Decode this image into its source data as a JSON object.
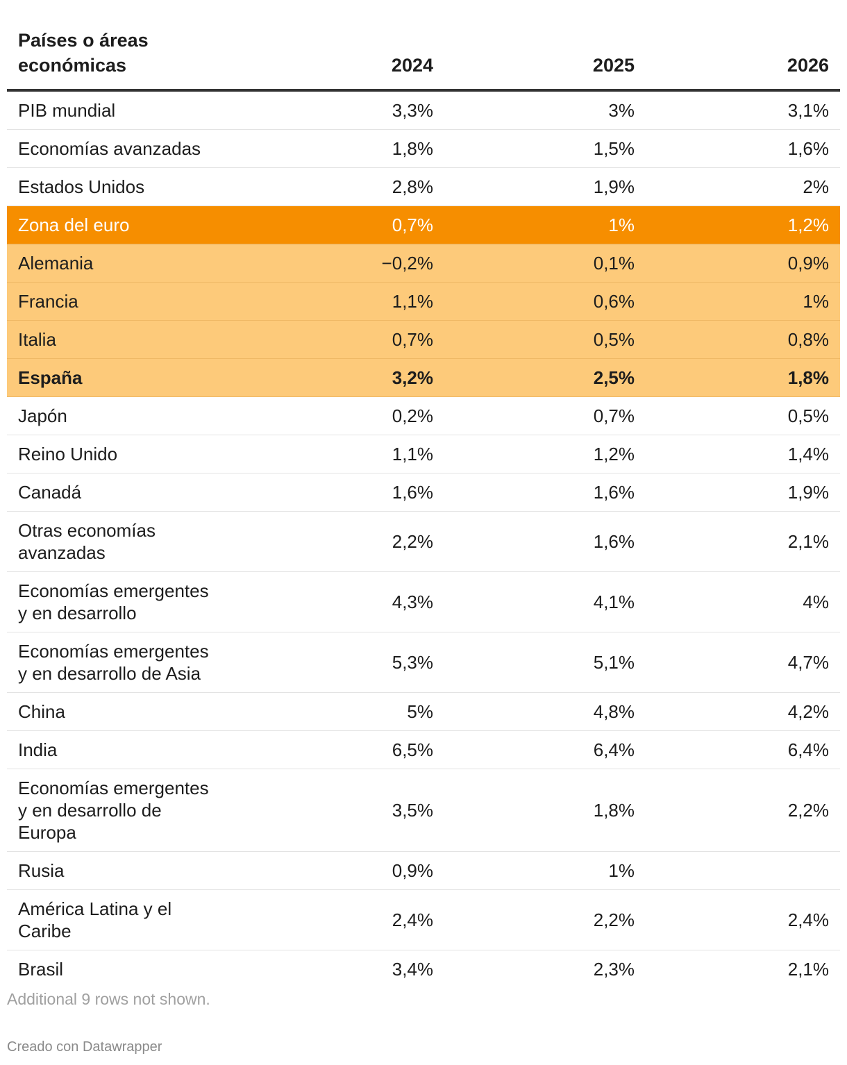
{
  "chart_data": {
    "type": "table",
    "columns": [
      "Países o áreas económicas",
      "2024",
      "2025",
      "2026"
    ],
    "rows": [
      {
        "name": "PIB mundial",
        "v2024": "3,3%",
        "v2025": "3%",
        "v2026": "3,1%",
        "highlight": "none",
        "bold": false
      },
      {
        "name": "Economías avanzadas",
        "v2024": "1,8%",
        "v2025": "1,5%",
        "v2026": "1,6%",
        "highlight": "none",
        "bold": false
      },
      {
        "name": "Estados Unidos",
        "v2024": "2,8%",
        "v2025": "1,9%",
        "v2026": "2%",
        "highlight": "none",
        "bold": false
      },
      {
        "name": "Zona del euro",
        "v2024": "0,7%",
        "v2025": "1%",
        "v2026": "1,2%",
        "highlight": "strong",
        "bold": false
      },
      {
        "name": "Alemania",
        "v2024": "−0,2%",
        "v2025": "0,1%",
        "v2026": "0,9%",
        "highlight": "soft",
        "bold": false
      },
      {
        "name": "Francia",
        "v2024": "1,1%",
        "v2025": "0,6%",
        "v2026": "1%",
        "highlight": "soft",
        "bold": false
      },
      {
        "name": "Italia",
        "v2024": "0,7%",
        "v2025": "0,5%",
        "v2026": "0,8%",
        "highlight": "soft",
        "bold": false
      },
      {
        "name": "España",
        "v2024": "3,2%",
        "v2025": "2,5%",
        "v2026": "1,8%",
        "highlight": "soft",
        "bold": true
      },
      {
        "name": "Japón",
        "v2024": "0,2%",
        "v2025": "0,7%",
        "v2026": "0,5%",
        "highlight": "none",
        "bold": false
      },
      {
        "name": "Reino Unido",
        "v2024": "1,1%",
        "v2025": "1,2%",
        "v2026": "1,4%",
        "highlight": "none",
        "bold": false
      },
      {
        "name": "Canadá",
        "v2024": "1,6%",
        "v2025": "1,6%",
        "v2026": "1,9%",
        "highlight": "none",
        "bold": false
      },
      {
        "name": "Otras economías avanzadas",
        "v2024": "2,2%",
        "v2025": "1,6%",
        "v2026": "2,1%",
        "highlight": "none",
        "bold": false
      },
      {
        "name": "Economías emergentes y en desarrollo",
        "v2024": "4,3%",
        "v2025": "4,1%",
        "v2026": "4%",
        "highlight": "none",
        "bold": false
      },
      {
        "name": "Economías emergentes y en desarrollo de Asia",
        "v2024": "5,3%",
        "v2025": "5,1%",
        "v2026": "4,7%",
        "highlight": "none",
        "bold": false
      },
      {
        "name": "China",
        "v2024": "5%",
        "v2025": "4,8%",
        "v2026": "4,2%",
        "highlight": "none",
        "bold": false
      },
      {
        "name": "India",
        "v2024": "6,5%",
        "v2025": "6,4%",
        "v2026": "6,4%",
        "highlight": "none",
        "bold": false
      },
      {
        "name": "Economías emergentes y en desarrollo de Europa",
        "v2024": "3,5%",
        "v2025": "1,8%",
        "v2026": "2,2%",
        "highlight": "none",
        "bold": false
      },
      {
        "name": "Rusia",
        "v2024": "0,9%",
        "v2025": "1%",
        "v2026": "",
        "highlight": "none",
        "bold": false
      },
      {
        "name": "América Latina y el Caribe",
        "v2024": "2,4%",
        "v2025": "2,2%",
        "v2026": "2,4%",
        "highlight": "none",
        "bold": false
      },
      {
        "name": "Brasil",
        "v2024": "3,4%",
        "v2025": "2,3%",
        "v2026": "2,1%",
        "highlight": "none",
        "bold": false
      }
    ],
    "note": "Additional 9 rows not shown.",
    "credit": "Creado con Datawrapper",
    "colors": {
      "highlight_strong": "#f68e00",
      "highlight_soft": "#fdca7a"
    }
  }
}
